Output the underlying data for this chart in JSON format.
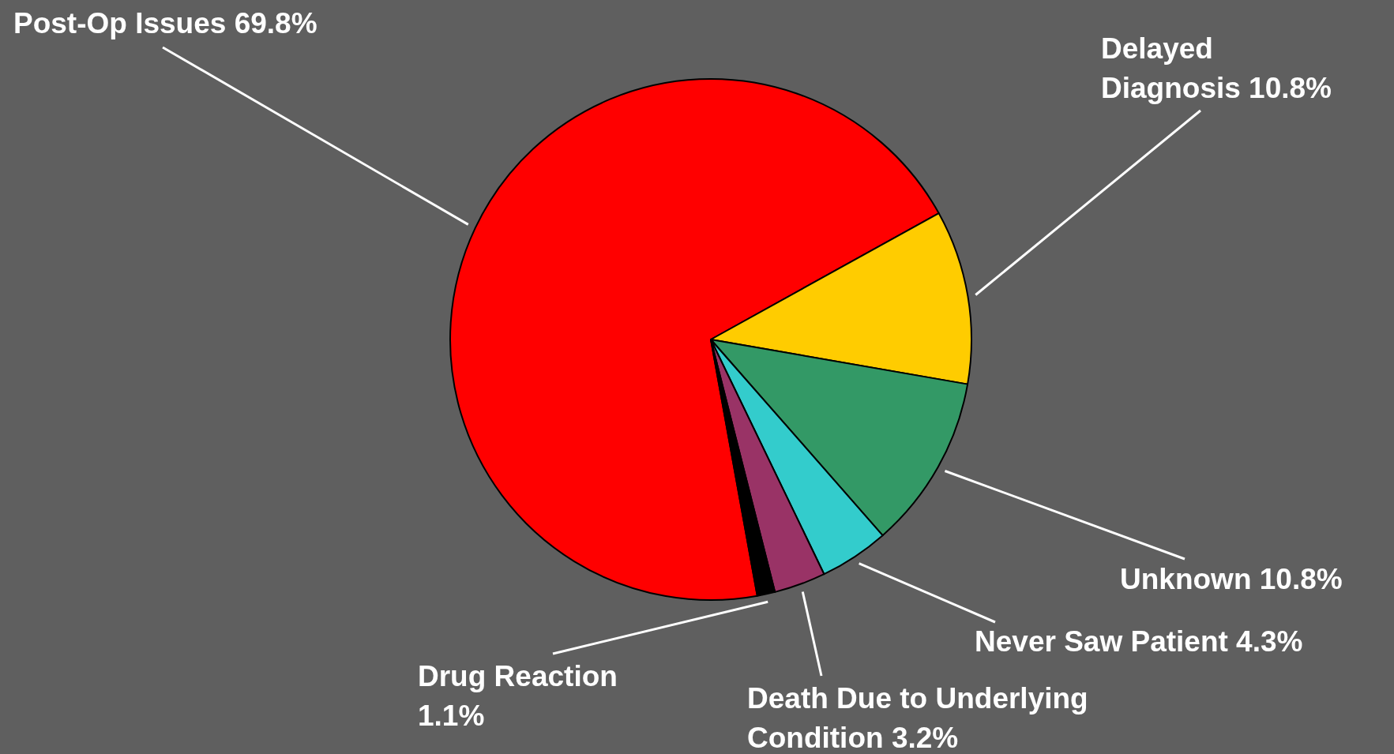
{
  "chart_data": {
    "type": "pie",
    "categories": [
      "Post-Op Issues",
      "Delayed Diagnosis",
      "Unknown",
      "Never Saw Patient",
      "Death Due to Underlying Condition",
      "Drug Reaction"
    ],
    "values": [
      69.8,
      10.8,
      10.8,
      4.3,
      3.2,
      1.1
    ],
    "value_labels": [
      "69.8%",
      "10.8%",
      "10.8%",
      "4.3%",
      "3.2%",
      "1.1%"
    ],
    "colors": [
      "#ff0000",
      "#ffcc00",
      "#339966",
      "#33cccc",
      "#993366",
      "#000000"
    ]
  }
}
